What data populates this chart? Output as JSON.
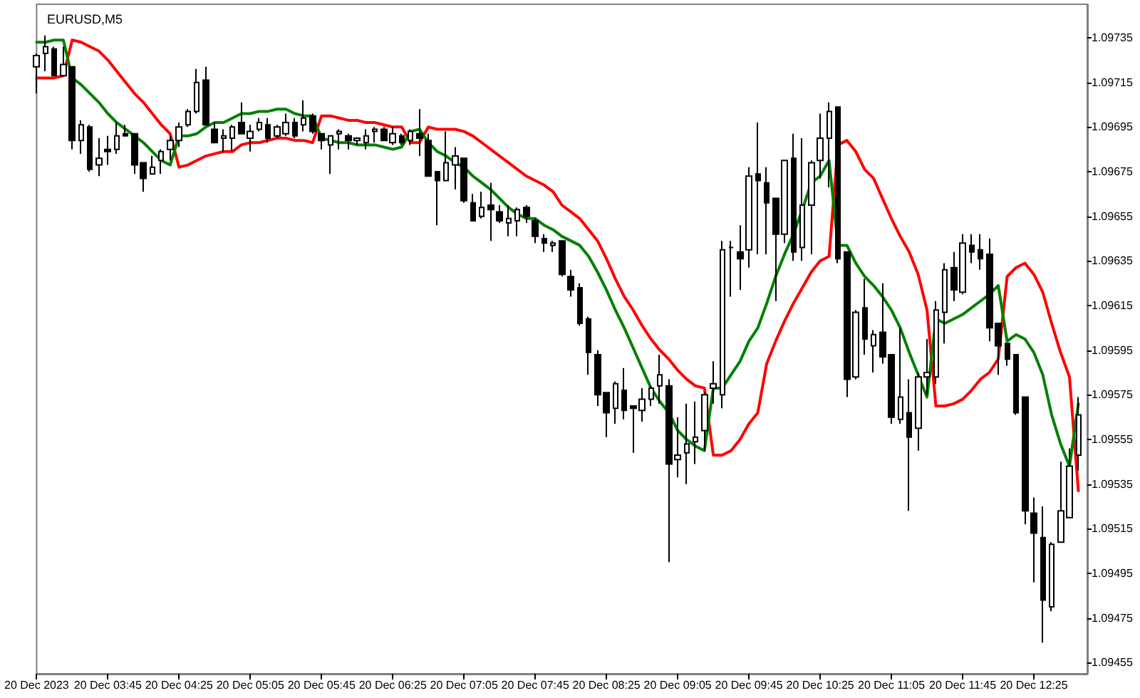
{
  "chart_data": {
    "type": "candlestick",
    "title": "EURUSD,M5",
    "color": "#000000",
    "marker": "none",
    "categories": [
      "20 Dec 2023",
      null,
      null,
      null,
      null,
      null,
      null,
      null,
      "20 Dec 03:45",
      null,
      null,
      null,
      null,
      null,
      null,
      null,
      "20 Dec 04:25",
      null,
      null,
      null,
      null,
      null,
      null,
      null,
      "20 Dec 05:05",
      null,
      null,
      null,
      null,
      null,
      null,
      null,
      "20 Dec 05:45",
      null,
      null,
      null,
      null,
      null,
      null,
      null,
      "20 Dec 06:25",
      null,
      null,
      null,
      null,
      null,
      null,
      null,
      "20 Dec 07:05",
      null,
      null,
      null,
      null,
      null,
      null,
      null,
      "20 Dec 07:45",
      null,
      null,
      null,
      null,
      null,
      null,
      null,
      "20 Dec 08:25",
      null,
      null,
      null,
      null,
      null,
      null,
      null,
      "20 Dec 09:05",
      null,
      null,
      null,
      null,
      null,
      null,
      null,
      "20 Dec 09:45",
      null,
      null,
      null,
      null,
      null,
      null,
      null,
      "20 Dec 10:25",
      null,
      null,
      null,
      null,
      null,
      null,
      null,
      "20 Dec 11:05",
      null,
      null,
      null,
      null,
      null,
      null,
      null,
      "20 Dec 11:45",
      null,
      null,
      null,
      null,
      null,
      null,
      null,
      "20 Dec 12:25",
      null,
      null,
      null,
      null,
      null
    ],
    "ohlc": [
      [
        1.09722,
        1.09728,
        1.0971,
        1.09727
      ],
      [
        1.09728,
        1.09736,
        1.0972,
        1.09731
      ],
      [
        1.0973,
        1.09731,
        1.09718,
        1.09718
      ],
      [
        1.09718,
        1.09731,
        1.09718,
        1.09723
      ],
      [
        1.09722,
        1.09722,
        1.09685,
        1.09689
      ],
      [
        1.09689,
        1.09698,
        1.09683,
        1.09696
      ],
      [
        1.09695,
        1.09696,
        1.09675,
        1.09676
      ],
      [
        1.09678,
        1.0969,
        1.09673,
        1.09681
      ],
      [
        1.09685,
        1.09691,
        1.09678,
        1.09684
      ],
      [
        1.09685,
        1.09697,
        1.09683,
        1.09691
      ],
      [
        1.09692,
        1.09696,
        1.09691,
        1.09691
      ],
      [
        1.09692,
        1.09692,
        1.09674,
        1.09678
      ],
      [
        1.09679,
        1.09679,
        1.09666,
        1.09672
      ],
      [
        1.09674,
        1.09682,
        1.09674,
        1.09677
      ],
      [
        1.0968,
        1.09685,
        1.09674,
        1.09684
      ],
      [
        1.09685,
        1.09691,
        1.0968,
        1.09689
      ],
      [
        1.09689,
        1.09697,
        1.09686,
        1.09695
      ],
      [
        1.09696,
        1.09703,
        1.09695,
        1.09702
      ],
      [
        1.09702,
        1.09721,
        1.09701,
        1.09715
      ],
      [
        1.09716,
        1.09722,
        1.09696,
        1.09696
      ],
      [
        1.09694,
        1.09697,
        1.09688,
        1.09688
      ],
      [
        1.0969,
        1.09694,
        1.09684,
        1.09691
      ],
      [
        1.0969,
        1.09696,
        1.09684,
        1.09695
      ],
      [
        1.09697,
        1.09706,
        1.09692,
        1.09692
      ],
      [
        1.0969,
        1.09696,
        1.09684,
        1.09693
      ],
      [
        1.09694,
        1.09699,
        1.09693,
        1.09697
      ],
      [
        1.09696,
        1.09699,
        1.09688,
        1.0969
      ],
      [
        1.09691,
        1.09696,
        1.0969,
        1.09695
      ],
      [
        1.09692,
        1.09701,
        1.09691,
        1.09697
      ],
      [
        1.09697,
        1.09699,
        1.0969,
        1.09691
      ],
      [
        1.09696,
        1.09707,
        1.09693,
        1.09699
      ],
      [
        1.097,
        1.09701,
        1.09692,
        1.09693
      ],
      [
        1.09692,
        1.09692,
        1.09685,
        1.09689
      ],
      [
        1.09687,
        1.09691,
        1.09674,
        1.09691
      ],
      [
        1.09692,
        1.09694,
        1.09685,
        1.09693
      ],
      [
        1.09691,
        1.09692,
        1.09685,
        1.09689
      ],
      [
        1.09689,
        1.0969,
        1.09687,
        1.0969
      ],
      [
        1.09688,
        1.09694,
        1.09685,
        1.09691
      ],
      [
        1.09693,
        1.09695,
        1.09688,
        1.09694
      ],
      [
        1.09694,
        1.09695,
        1.09689,
        1.09689
      ],
      [
        1.09688,
        1.09695,
        1.09687,
        1.09692
      ],
      [
        1.09691,
        1.09692,
        1.09687,
        1.09688
      ],
      [
        1.09689,
        1.09694,
        1.09687,
        1.09693
      ],
      [
        1.09692,
        1.09703,
        1.09682,
        1.0969
      ],
      [
        1.09689,
        1.09692,
        1.09673,
        1.09673
      ],
      [
        1.09675,
        1.09675,
        1.09651,
        1.09671
      ],
      [
        1.09671,
        1.09693,
        1.09671,
        1.09679
      ],
      [
        1.09678,
        1.09686,
        1.09667,
        1.09682
      ],
      [
        1.09681,
        1.09681,
        1.09661,
        1.09662
      ],
      [
        1.09661,
        1.09665,
        1.09653,
        1.09653
      ],
      [
        1.09655,
        1.09666,
        1.09654,
        1.09659
      ],
      [
        1.0966,
        1.0967,
        1.09644,
        1.09658
      ],
      [
        1.09657,
        1.0966,
        1.09652,
        1.09653
      ],
      [
        1.09652,
        1.0966,
        1.09646,
        1.09654
      ],
      [
        1.09653,
        1.09659,
        1.09646,
        1.09658
      ],
      [
        1.09659,
        1.0966,
        1.09652,
        1.09655
      ],
      [
        1.09653,
        1.09654,
        1.09643,
        1.09646
      ],
      [
        1.09645,
        1.09647,
        1.09639,
        1.09643
      ],
      [
        1.09642,
        1.09644,
        1.09639,
        1.09643
      ],
      [
        1.09644,
        1.09644,
        1.09628,
        1.09629
      ],
      [
        1.09628,
        1.09631,
        1.09619,
        1.09622
      ],
      [
        1.09623,
        1.09625,
        1.09606,
        1.09607
      ],
      [
        1.09609,
        1.0961,
        1.09584,
        1.09594
      ],
      [
        1.09593,
        1.09595,
        1.0957,
        1.09575
      ],
      [
        1.09576,
        1.09576,
        1.09556,
        1.09567
      ],
      [
        1.09569,
        1.09581,
        1.09562,
        1.0958
      ],
      [
        1.09577,
        1.09587,
        1.09564,
        1.09568
      ],
      [
        1.0957,
        1.0957,
        1.09549,
        1.09569
      ],
      [
        1.09568,
        1.09578,
        1.09563,
        1.09573
      ],
      [
        1.09573,
        1.09579,
        1.0957,
        1.09578
      ],
      [
        1.09579,
        1.09593,
        1.09571,
        1.09584
      ],
      [
        1.09579,
        1.09582,
        1.095,
        1.09544
      ],
      [
        1.09546,
        1.09565,
        1.09538,
        1.09548
      ],
      [
        1.09549,
        1.09571,
        1.09535,
        1.09553
      ],
      [
        1.09554,
        1.09572,
        1.09544,
        1.09556
      ],
      [
        1.09559,
        1.09576,
        1.0955,
        1.09575
      ],
      [
        1.09578,
        1.0959,
        1.09571,
        1.0958
      ],
      [
        1.09575,
        1.09644,
        1.09569,
        1.0964
      ],
      [
        1.09641,
        1.09644,
        1.09619,
        1.09641
      ],
      [
        1.09639,
        1.09651,
        1.09622,
        1.09636
      ],
      [
        1.0964,
        1.09677,
        1.09632,
        1.09673
      ],
      [
        1.09674,
        1.09697,
        1.09638,
        1.09671
      ],
      [
        1.0967,
        1.09677,
        1.09638,
        1.09661
      ],
      [
        1.09663,
        1.09663,
        1.09617,
        1.09647
      ],
      [
        1.09647,
        1.0968,
        1.09643,
        1.0968
      ],
      [
        1.09681,
        1.09692,
        1.09635,
        1.09639
      ],
      [
        1.09641,
        1.0969,
        1.09635,
        1.0966
      ],
      [
        1.0966,
        1.0968,
        1.09638,
        1.09679
      ],
      [
        1.0968,
        1.09701,
        1.09672,
        1.0969
      ],
      [
        1.0969,
        1.09706,
        1.09668,
        1.09702
      ],
      [
        1.09704,
        1.09704,
        1.09634,
        1.09636
      ],
      [
        1.09639,
        1.09639,
        1.09574,
        1.09582
      ],
      [
        1.09583,
        1.09613,
        1.09582,
        1.09612
      ],
      [
        1.09614,
        1.09627,
        1.09593,
        1.096
      ],
      [
        1.09597,
        1.09604,
        1.09585,
        1.09602
      ],
      [
        1.09603,
        1.09625,
        1.09589,
        1.09592
      ],
      [
        1.09593,
        1.09593,
        1.09562,
        1.09565
      ],
      [
        1.09564,
        1.09605,
        1.09562,
        1.09574
      ],
      [
        1.09567,
        1.09582,
        1.09523,
        1.09556
      ],
      [
        1.0956,
        1.09585,
        1.0955,
        1.09583
      ],
      [
        1.09583,
        1.096,
        1.09575,
        1.09585
      ],
      [
        1.09583,
        1.09617,
        1.0958,
        1.09613
      ],
      [
        1.09612,
        1.09634,
        1.09598,
        1.09631
      ],
      [
        1.09632,
        1.09639,
        1.09617,
        1.09622
      ],
      [
        1.09621,
        1.09647,
        1.0962,
        1.09643
      ],
      [
        1.09642,
        1.09647,
        1.09634,
        1.09639
      ],
      [
        1.0964,
        1.09647,
        1.09631,
        1.09636
      ],
      [
        1.09638,
        1.09645,
        1.09599,
        1.09605
      ],
      [
        1.09607,
        1.09607,
        1.09584,
        1.09597
      ],
      [
        1.09598,
        1.09598,
        1.09588,
        1.09591
      ],
      [
        1.09593,
        1.09593,
        1.09566,
        1.09567
      ],
      [
        1.09574,
        1.09574,
        1.09517,
        1.09523
      ],
      [
        1.09522,
        1.09529,
        1.09491,
        1.09513
      ],
      [
        1.09511,
        1.09525,
        1.09464,
        1.09483
      ],
      [
        1.0948,
        1.09509,
        1.09478,
        1.09508
      ],
      [
        1.09509,
        1.09545,
        1.09509,
        1.09523
      ],
      [
        1.0952,
        1.09551,
        1.0952,
        1.09543
      ],
      [
        1.09548,
        1.09574,
        1.09541,
        1.09566
      ]
    ],
    "series": [
      {
        "type": "line",
        "color": "#ff0000",
        "values": [
          1.09717,
          1.09717,
          1.09717,
          1.09718,
          1.09734,
          1.09733,
          1.09731,
          1.09729,
          1.09725,
          1.0972,
          1.09715,
          1.0971,
          1.09706,
          1.09701,
          1.09696,
          1.09692,
          1.09677,
          1.09678,
          1.0968,
          1.09682,
          1.09683,
          1.09684,
          1.09684,
          1.09687,
          1.09688,
          1.09688,
          1.09689,
          1.0969,
          1.0969,
          1.09689,
          1.09689,
          1.09688,
          1.097,
          1.097,
          1.09699,
          1.09698,
          1.09698,
          1.09697,
          1.09697,
          1.09696,
          1.09695,
          1.09695,
          1.09688,
          1.09688,
          1.09695,
          1.09694,
          1.09694,
          1.09694,
          1.09693,
          1.09691,
          1.09688,
          1.09685,
          1.09682,
          1.09679,
          1.09676,
          1.09673,
          1.09671,
          1.09669,
          1.09666,
          1.0966,
          1.09657,
          1.09654,
          1.09649,
          1.09644,
          1.09636,
          1.09627,
          1.09619,
          1.09613,
          1.09606,
          1.096,
          1.09595,
          1.09591,
          1.09586,
          1.09582,
          1.09579,
          1.09578,
          1.09548,
          1.09548,
          1.0955,
          1.09555,
          1.09562,
          1.09567,
          1.09589,
          1.09599,
          1.09608,
          1.09616,
          1.09623,
          1.0963,
          1.09635,
          1.09637,
          1.09687,
          1.09689,
          1.09684,
          1.09676,
          1.09672,
          1.09663,
          1.09654,
          1.09646,
          1.09639,
          1.09629,
          1.09613,
          1.0957,
          1.0957,
          1.09571,
          1.09573,
          1.09577,
          1.09582,
          1.09585,
          1.09591,
          1.09628,
          1.09632,
          1.09634,
          1.09629,
          1.09621,
          1.09607,
          1.09594,
          1.09583,
          1.09532
        ]
      },
      {
        "type": "line",
        "color": "#008000",
        "values": [
          1.09733,
          1.09733,
          1.09734,
          1.09734,
          1.09717,
          1.09714,
          1.0971,
          1.09706,
          1.09701,
          1.09697,
          1.09694,
          1.09691,
          1.09688,
          1.09684,
          1.0968,
          1.09678,
          1.09691,
          1.09691,
          1.09692,
          1.09695,
          1.09697,
          1.09697,
          1.09699,
          1.09701,
          1.09701,
          1.09702,
          1.09702,
          1.09703,
          1.09703,
          1.09701,
          1.097,
          1.097,
          1.0969,
          1.09689,
          1.09688,
          1.09688,
          1.09687,
          1.09687,
          1.09687,
          1.09686,
          1.09685,
          1.09686,
          1.09693,
          1.09694,
          1.09688,
          1.09684,
          1.09682,
          1.09679,
          1.09677,
          1.09673,
          1.0967,
          1.09667,
          1.09663,
          1.09659,
          1.09656,
          1.09654,
          1.09654,
          1.09651,
          1.09649,
          1.09646,
          1.09644,
          1.09642,
          1.09637,
          1.0963,
          1.09622,
          1.09613,
          1.09605,
          1.09596,
          1.09587,
          1.09578,
          1.09572,
          1.09567,
          1.09559,
          1.09555,
          1.09552,
          1.0955,
          1.09578,
          1.09578,
          1.09584,
          1.0959,
          1.09599,
          1.09605,
          1.09616,
          1.09628,
          1.09638,
          1.09647,
          1.09658,
          1.0967,
          1.09673,
          1.0968,
          1.09642,
          1.09642,
          1.09634,
          1.09628,
          1.09624,
          1.09619,
          1.09613,
          1.09605,
          1.09594,
          1.09584,
          1.09574,
          1.09609,
          1.09607,
          1.09609,
          1.09611,
          1.09614,
          1.09617,
          1.0962,
          1.09624,
          1.09599,
          1.09602,
          1.096,
          1.09594,
          1.09584,
          1.09566,
          1.09553,
          1.09543,
          1.09571
        ]
      }
    ],
    "ylim": [
      1.0945,
      1.0975
    ],
    "yticks": [
      1.09455,
      1.09475,
      1.09495,
      1.09515,
      1.09535,
      1.09555,
      1.09575,
      1.09595,
      1.09615,
      1.09635,
      1.09655,
      1.09675,
      1.09695,
      1.09715,
      1.09735
    ]
  }
}
